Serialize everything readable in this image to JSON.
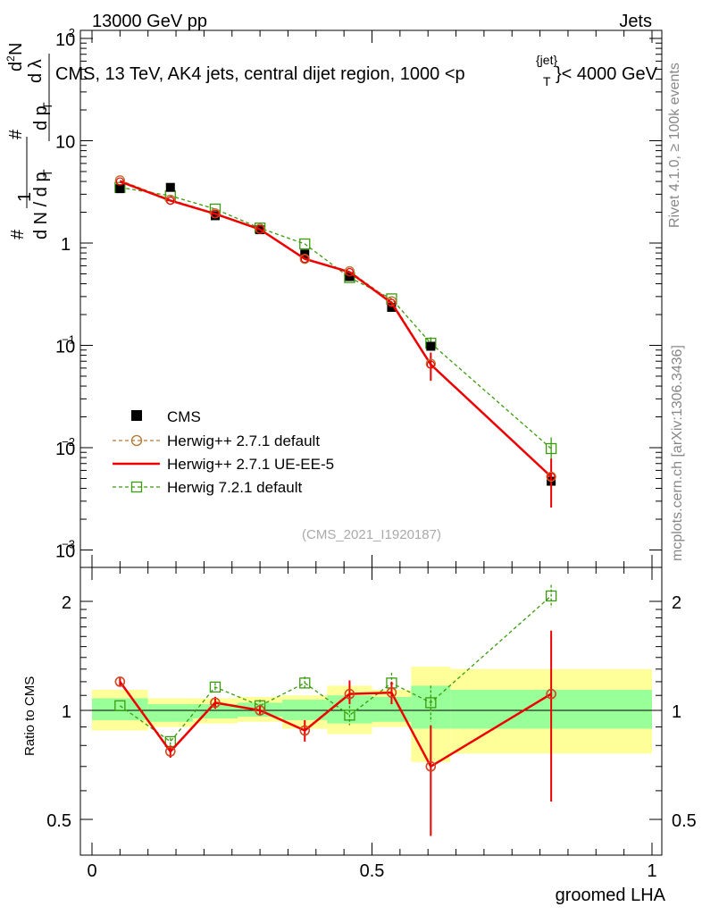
{
  "header": {
    "left": "13000 GeV pp",
    "right": "Jets"
  },
  "title_main": "CMS, 13 TeV, AK4 jets, central dijet region, 1000 <p",
  "title_sup": "{jet}",
  "title_sub": "T",
  "title_end": "}< 4000 GeV",
  "ylabel_top": "#  1/dN/dp_T #  d²N/dp_T dλ",
  "ylabel_parts": {
    "hash": "#",
    "one": "1",
    "dNdpT": "d N / d p",
    "T": "T",
    "hash2": "#",
    "d2N": "d",
    "sq": "2",
    "N": "N",
    "dp": "d p",
    "dl": "d λ"
  },
  "side_labels": {
    "rivet": "Rivet 4.1.0, ≥ 100k events",
    "mcplots": "mcplots.cern.ch [arXiv:1306.3436]"
  },
  "analysis_id": "(CMS_2021_I1920187)",
  "colors": {
    "cms": "#000000",
    "herwigpp_default": "#b8732e",
    "herwigpp_ueee5": "#ee0000",
    "herwig72": "#3a9b0c",
    "band_inner": "#99ff99",
    "band_outer": "#ffff99"
  },
  "chart_data": [
    {
      "type": "line",
      "panel": "main",
      "yscale": "log",
      "ylim": [
        0.0008,
        120
      ],
      "xlim": [
        -0.02,
        1.0
      ],
      "yticks": [
        {
          "v": 0.001,
          "label": "10",
          "exp": "−3"
        },
        {
          "v": 0.01,
          "label": "10",
          "exp": "−2"
        },
        {
          "v": 0.1,
          "label": "10",
          "exp": "−1"
        },
        {
          "v": 1,
          "label": "1",
          "exp": ""
        },
        {
          "v": 10,
          "label": "10",
          "exp": ""
        },
        {
          "v": 100,
          "label": "10",
          "exp": "2"
        }
      ],
      "x": [
        0.05,
        0.14,
        0.22,
        0.3,
        0.38,
        0.46,
        0.535,
        0.605,
        0.82
      ],
      "bin_edges": [
        0.0,
        0.1,
        0.18,
        0.26,
        0.34,
        0.42,
        0.5,
        0.57,
        0.64,
        1.0
      ],
      "series": [
        {
          "name": "CMS",
          "values": [
            3.4,
            3.5,
            1.85,
            1.35,
            0.78,
            0.47,
            0.235,
            0.098,
            0.0047
          ]
        },
        {
          "name": "Herwig++ 2.7.1 default",
          "values": [
            4.1,
            2.65,
            1.95,
            1.38,
            0.7,
            0.53,
            0.27,
            0.066,
            0.0052
          ]
        },
        {
          "name": "Herwig++ 2.7.1 UE-EE-5",
          "values": [
            4.0,
            2.6,
            1.93,
            1.36,
            0.7,
            0.52,
            0.26,
            0.065,
            0.0052
          ],
          "errors": [
            0,
            0,
            0,
            0,
            0,
            0,
            0,
            0.02,
            0.0026
          ]
        },
        {
          "name": "Herwig 7.2.1 default",
          "values": [
            3.5,
            2.9,
            2.15,
            1.4,
            0.98,
            0.46,
            0.285,
            0.105,
            0.0098
          ],
          "errors": [
            0,
            0,
            0,
            0,
            0,
            0,
            0,
            0.015,
            0.0028
          ]
        }
      ]
    },
    {
      "type": "line",
      "panel": "ratio",
      "ylabel": "Ratio to CMS",
      "xlabel": "groomed LHA",
      "yscale": "log",
      "ylim": [
        0.4,
        2.4
      ],
      "xlim": [
        -0.02,
        1.0
      ],
      "yticks": [
        {
          "v": 0.5,
          "label": "0.5"
        },
        {
          "v": 1,
          "label": "1"
        },
        {
          "v": 2,
          "label": "2"
        }
      ],
      "xticks": [
        {
          "v": 0,
          "label": "0"
        },
        {
          "v": 0.5,
          "label": "0.5"
        },
        {
          "v": 1,
          "label": "1"
        }
      ],
      "x": [
        0.05,
        0.14,
        0.22,
        0.3,
        0.38,
        0.46,
        0.535,
        0.605,
        0.82
      ],
      "band_edges": [
        0.0,
        0.1,
        0.18,
        0.26,
        0.34,
        0.42,
        0.5,
        0.57,
        0.64,
        1.0
      ],
      "band_inner": [
        [
          0.94,
          1.08
        ],
        [
          0.93,
          1.04
        ],
        [
          0.95,
          1.04
        ],
        [
          0.96,
          1.05
        ],
        [
          0.94,
          1.07
        ],
        [
          0.92,
          1.1
        ],
        [
          0.93,
          1.09
        ],
        [
          0.89,
          1.17
        ],
        [
          0.89,
          1.14
        ]
      ],
      "band_outer": [
        [
          0.88,
          1.14
        ],
        [
          0.9,
          1.08
        ],
        [
          0.92,
          1.08
        ],
        [
          0.93,
          1.09
        ],
        [
          0.89,
          1.1
        ],
        [
          0.86,
          1.17
        ],
        [
          0.9,
          1.14
        ],
        [
          0.72,
          1.32
        ],
        [
          0.76,
          1.3
        ]
      ],
      "series": [
        {
          "name": "Herwig++ 2.7.1 default",
          "values": [
            1.2,
            0.77,
            1.05,
            1.0,
            0.88,
            1.11,
            1.12,
            0.7,
            1.11
          ]
        },
        {
          "name": "Herwig++ 2.7.1 UE-EE-5",
          "values": [
            1.2,
            0.77,
            1.05,
            1.0,
            0.88,
            1.11,
            1.12,
            0.7,
            1.11
          ],
          "err_lo": [
            0.03,
            0.03,
            0.04,
            0.03,
            0.06,
            0.07,
            0.08,
            0.25,
            0.55
          ],
          "err_hi": [
            0.03,
            0.03,
            0.04,
            0.03,
            0.06,
            0.1,
            0.08,
            0.21,
            0.55
          ]
        },
        {
          "name": "Herwig 7.2.1 default",
          "values": [
            1.03,
            0.82,
            1.16,
            1.03,
            1.19,
            0.97,
            1.19,
            1.05,
            2.07
          ],
          "err_lo": [
            0,
            0.02,
            0.03,
            0.04,
            0.05,
            0.06,
            0.08,
            0.12,
            0.15
          ],
          "err_hi": [
            0,
            0.02,
            0.03,
            0.04,
            0.05,
            0.06,
            0.08,
            0.12,
            0.15
          ]
        }
      ]
    }
  ],
  "legend": {
    "placement": "lower-left",
    "items": [
      "CMS",
      "Herwig++ 2.7.1 default",
      "Herwig++ 2.7.1 UE-EE-5",
      "Herwig 7.2.1 default"
    ]
  }
}
